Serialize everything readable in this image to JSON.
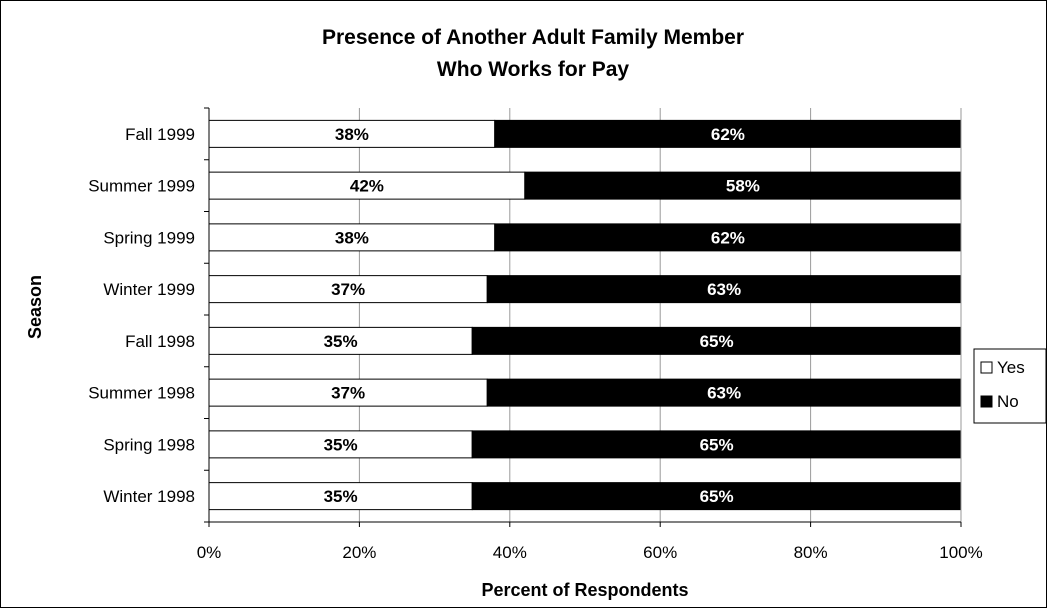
{
  "chart_data": {
    "type": "bar",
    "orientation": "horizontal",
    "stacked": true,
    "percent_stacked": true,
    "title": [
      "Presence of Another Adult Family Member",
      "Who Works for Pay"
    ],
    "xlabel": "Percent of Respondents",
    "ylabel": "Season",
    "categories": [
      "Fall 1999",
      "Summer 1999",
      "Spring 1999",
      "Winter 1999",
      "Fall 1998",
      "Summer 1998",
      "Spring 1998",
      "Winter 1998"
    ],
    "series": [
      {
        "name": "Yes",
        "color": "#ffffff",
        "label_color": "#000000",
        "values": [
          38,
          42,
          38,
          37,
          35,
          37,
          35,
          35
        ]
      },
      {
        "name": "No",
        "color": "#000000",
        "label_color": "#ffffff",
        "values": [
          62,
          58,
          62,
          63,
          65,
          63,
          65,
          65
        ]
      }
    ],
    "xlim": [
      0,
      100
    ],
    "xticks": [
      0,
      20,
      40,
      60,
      80,
      100
    ],
    "tick_format": "percent",
    "grid": "vertical",
    "legend": "right"
  }
}
